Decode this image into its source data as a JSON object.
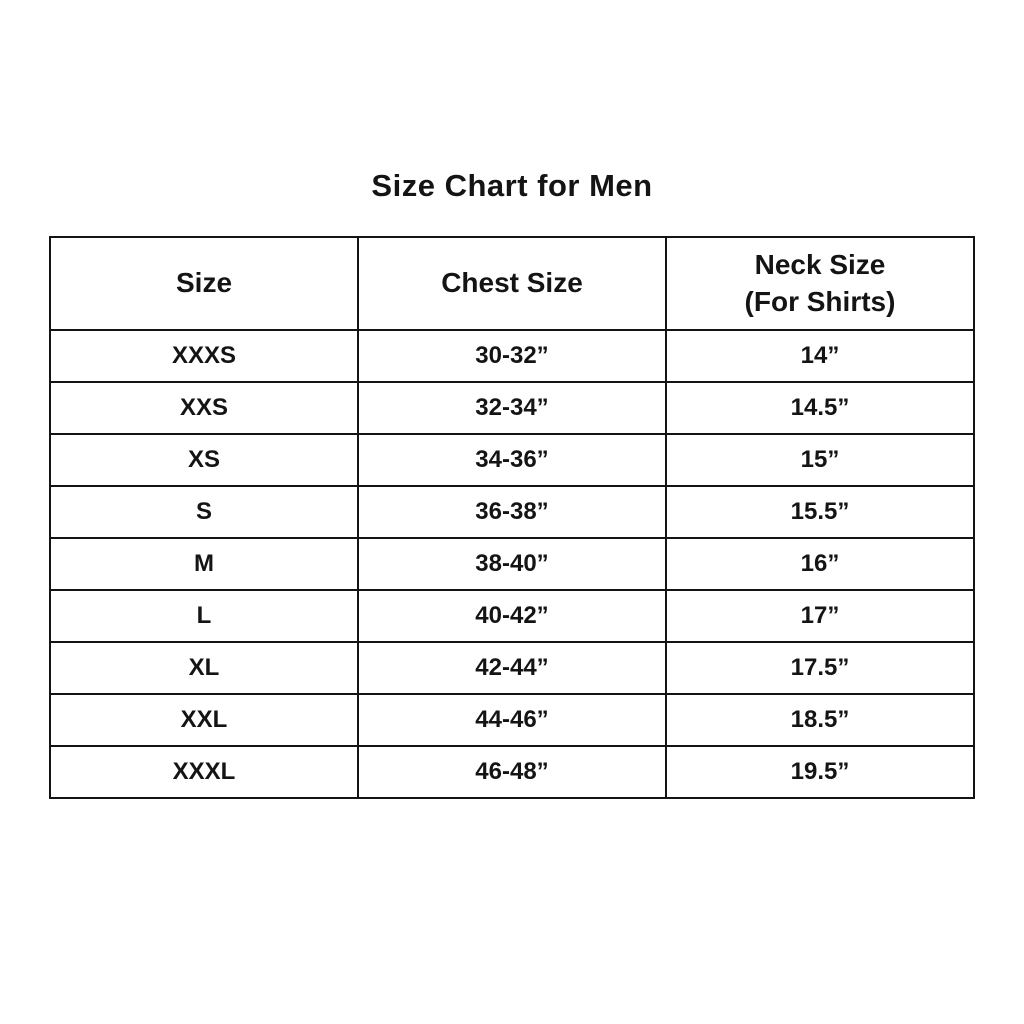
{
  "chart_data": {
    "type": "table",
    "title": "Size Chart for Men",
    "columns": [
      "Size",
      "Chest Size",
      "Neck Size (For Shirts)"
    ],
    "header": {
      "col1": "Size",
      "col2": "Chest Size",
      "col3_line1": "Neck Size",
      "col3_line2": "(For Shirts)"
    },
    "rows": [
      [
        "XXXS",
        "30-32”",
        "14”"
      ],
      [
        "XXS",
        "32-34”",
        "14.5”"
      ],
      [
        "XS",
        "34-36”",
        "15”"
      ],
      [
        "S",
        "36-38”",
        "15.5”"
      ],
      [
        "M",
        "38-40”",
        "16”"
      ],
      [
        "L",
        "40-42”",
        "17”"
      ],
      [
        "XL",
        "42-44”",
        "17.5”"
      ],
      [
        "XXL",
        "44-46”",
        "18.5”"
      ],
      [
        "XXXL",
        "46-48”",
        "19.5”"
      ]
    ]
  }
}
